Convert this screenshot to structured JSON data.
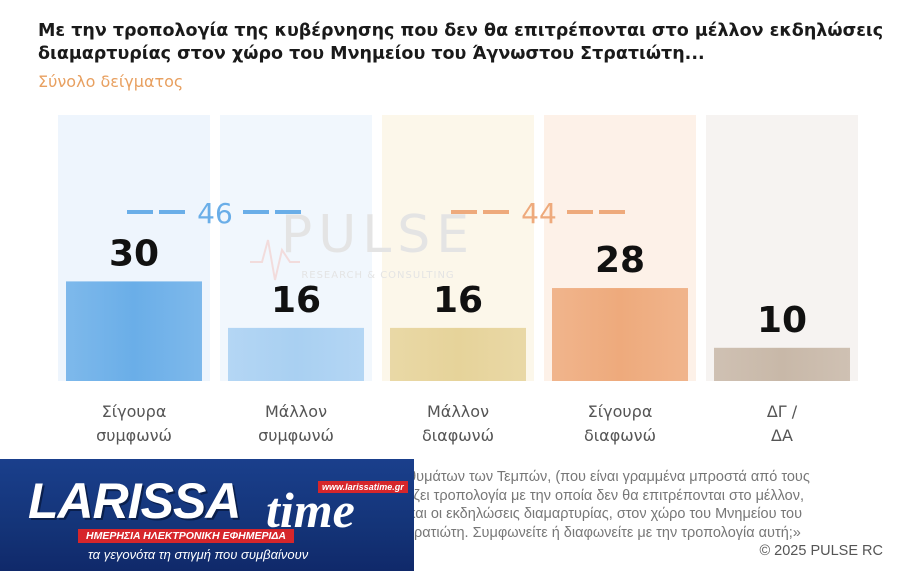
{
  "header": {
    "title": "Με την τροπολογία της κυβέρνησης που δεν θα επιτρέπονται στο μέλλον εκδηλώσεις διαμαρτυρίας στον χώρο του Μνημείου του Άγνωστου Στρατιώτη...",
    "subtitle": "Σύνολο δείγματος"
  },
  "watermark": {
    "brand": "PULSE",
    "tagline": "RESEARCH & CONSULTING"
  },
  "chart_data": {
    "type": "bar",
    "title": "Με την τροπολογία της κυβέρνησης που δεν θα επιτρέπονται στο μέλλον εκδηλώσεις διαμαρτυρίας στον χώρο του Μνημείου του Άγνωστου Στρατιώτη...",
    "subtitle": "Σύνολο δείγματος",
    "categories": [
      "Σίγουρα συμφωνώ",
      "Μάλλον συμφωνώ",
      "Μάλλον διαφωνώ",
      "Σίγουρα διαφωνώ",
      "ΔΓ / ΔΑ"
    ],
    "category_lines": [
      [
        "Σίγουρα",
        "συμφωνώ"
      ],
      [
        "Μάλλον",
        "συμφωνώ"
      ],
      [
        "Μάλλον",
        "διαφωνώ"
      ],
      [
        "Σίγουρα",
        "διαφωνώ"
      ],
      [
        "ΔΓ /",
        "ΔΑ"
      ]
    ],
    "values": [
      30,
      16,
      16,
      28,
      10
    ],
    "value_labels": [
      "30",
      "16",
      "16",
      "28",
      "10"
    ],
    "colors": [
      "#6aaee8",
      "#a9d0f2",
      "#e6d39a",
      "#eeaa7c",
      "#c8b8a8"
    ],
    "background_colors": [
      "#eef5fd",
      "#f1f7fd",
      "#fcf7ea",
      "#fdf1e8",
      "#f6f3f1"
    ],
    "group_totals": [
      {
        "label": "46",
        "covers": [
          0,
          1
        ],
        "color": "#6aaee8"
      },
      {
        "label": "44",
        "covers": [
          2,
          3
        ],
        "color": "#eeaa7c"
      }
    ],
    "ylim": [
      0,
      100
    ],
    "grid": false,
    "legend": "none"
  },
  "footnote": {
    "lines": [
      "των θυμάτων των Τεμπών, (που είναι γραμμένα μπροστά από τους",
      "τοιμάζει τροπολογία με την οποία δεν θα επιτρέπονται στο μέλλον,",
      "των και οι εκδηλώσεις διαμαρτυρίας, στον χώρο του Μνημείου του",
      "ου Στρατιώτη. Συμφωνείτε ή διαφωνείτε με την τροπολογία αυτή;»"
    ],
    "copyright": "©  2025  PULSE RC"
  },
  "logo": {
    "name_part1": "LARISSA",
    "name_part2": "time",
    "url": "www.larissatime.gr",
    "tagline": "ΗΜΕΡΗΣΙΑ ΗΛΕΚΤΡΟΝΙΚΗ ΕΦΗΜΕΡΙΔΑ",
    "slogan": "τα γεγονότα τη στιγμή που συμβαίνουν"
  }
}
